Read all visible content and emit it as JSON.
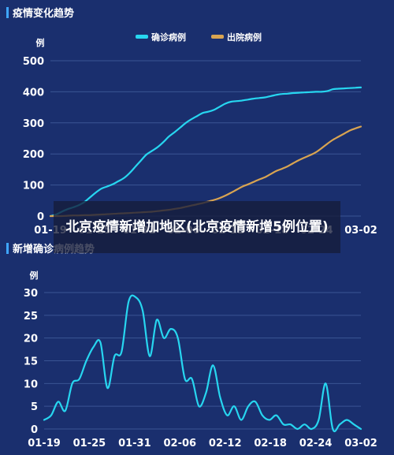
{
  "colors": {
    "background": "#1a2f6e",
    "grid": "#3a5594",
    "text": "#ffffff",
    "title_bar": "#3fa6ff",
    "confirmed": "#27d6f0",
    "discharged": "#d9a451",
    "daily": "#27d6f0"
  },
  "overlay": {
    "text": "北京疫情新增加地区(北京疫情新增5例位置)"
  },
  "chart_data": [
    {
      "type": "line",
      "title": "疫情变化趋势",
      "ylabel": "例",
      "x_ticks": [
        "01-19",
        "01-25",
        "01-31",
        "02-06",
        "02-12",
        "02-18",
        "02-24",
        "03-02"
      ],
      "y_ticks": [
        "0",
        "100",
        "200",
        "300",
        "400",
        "500"
      ],
      "ylim": [
        0,
        500
      ],
      "grid": true,
      "legend": "top-center",
      "series": [
        {
          "name": "确诊病例",
          "color": "#27d6f0",
          "values": [
            0,
            5,
            14,
            22,
            28,
            35,
            45,
            60,
            75,
            88,
            95,
            102,
            112,
            122,
            138,
            158,
            178,
            198,
            210,
            222,
            238,
            256,
            270,
            285,
            300,
            312,
            322,
            332,
            336,
            342,
            352,
            362,
            368,
            370,
            372,
            375,
            378,
            380,
            382,
            386,
            390,
            393,
            394,
            396,
            397,
            398,
            399,
            400,
            400,
            402,
            408,
            410,
            411,
            412,
            413,
            414
          ]
        },
        {
          "name": "出院病例",
          "color": "#d9a451",
          "values": [
            0,
            0,
            0,
            1,
            2,
            2,
            3,
            3,
            4,
            5,
            6,
            7,
            8,
            9,
            10,
            11,
            12,
            13,
            14,
            16,
            18,
            20,
            23,
            26,
            30,
            34,
            38,
            42,
            47,
            52,
            58,
            66,
            75,
            85,
            95,
            102,
            110,
            118,
            125,
            135,
            145,
            152,
            160,
            170,
            180,
            188,
            196,
            205,
            218,
            232,
            245,
            255,
            265,
            275,
            282,
            288
          ]
        }
      ]
    },
    {
      "type": "line",
      "title": "新增确诊病例趋势",
      "ylabel": "例",
      "x_ticks": [
        "01-19",
        "01-25",
        "01-31",
        "02-06",
        "02-12",
        "02-18",
        "02-24",
        "03-02"
      ],
      "y_ticks": [
        "0",
        "5",
        "10",
        "15",
        "20",
        "25",
        "30"
      ],
      "ylim": [
        0,
        30
      ],
      "grid": true,
      "series": [
        {
          "name": "",
          "color": "#27d6f0",
          "values": [
            2,
            3,
            6,
            4,
            10,
            11,
            15,
            18,
            19,
            9,
            16,
            17,
            28,
            29,
            26,
            16,
            24,
            20,
            22,
            20,
            11,
            11,
            5,
            8,
            14,
            7,
            3,
            5,
            2,
            5,
            6,
            3,
            2,
            3,
            1,
            1,
            0,
            1,
            0,
            2,
            10,
            0,
            1,
            2,
            1,
            0
          ]
        }
      ]
    }
  ]
}
